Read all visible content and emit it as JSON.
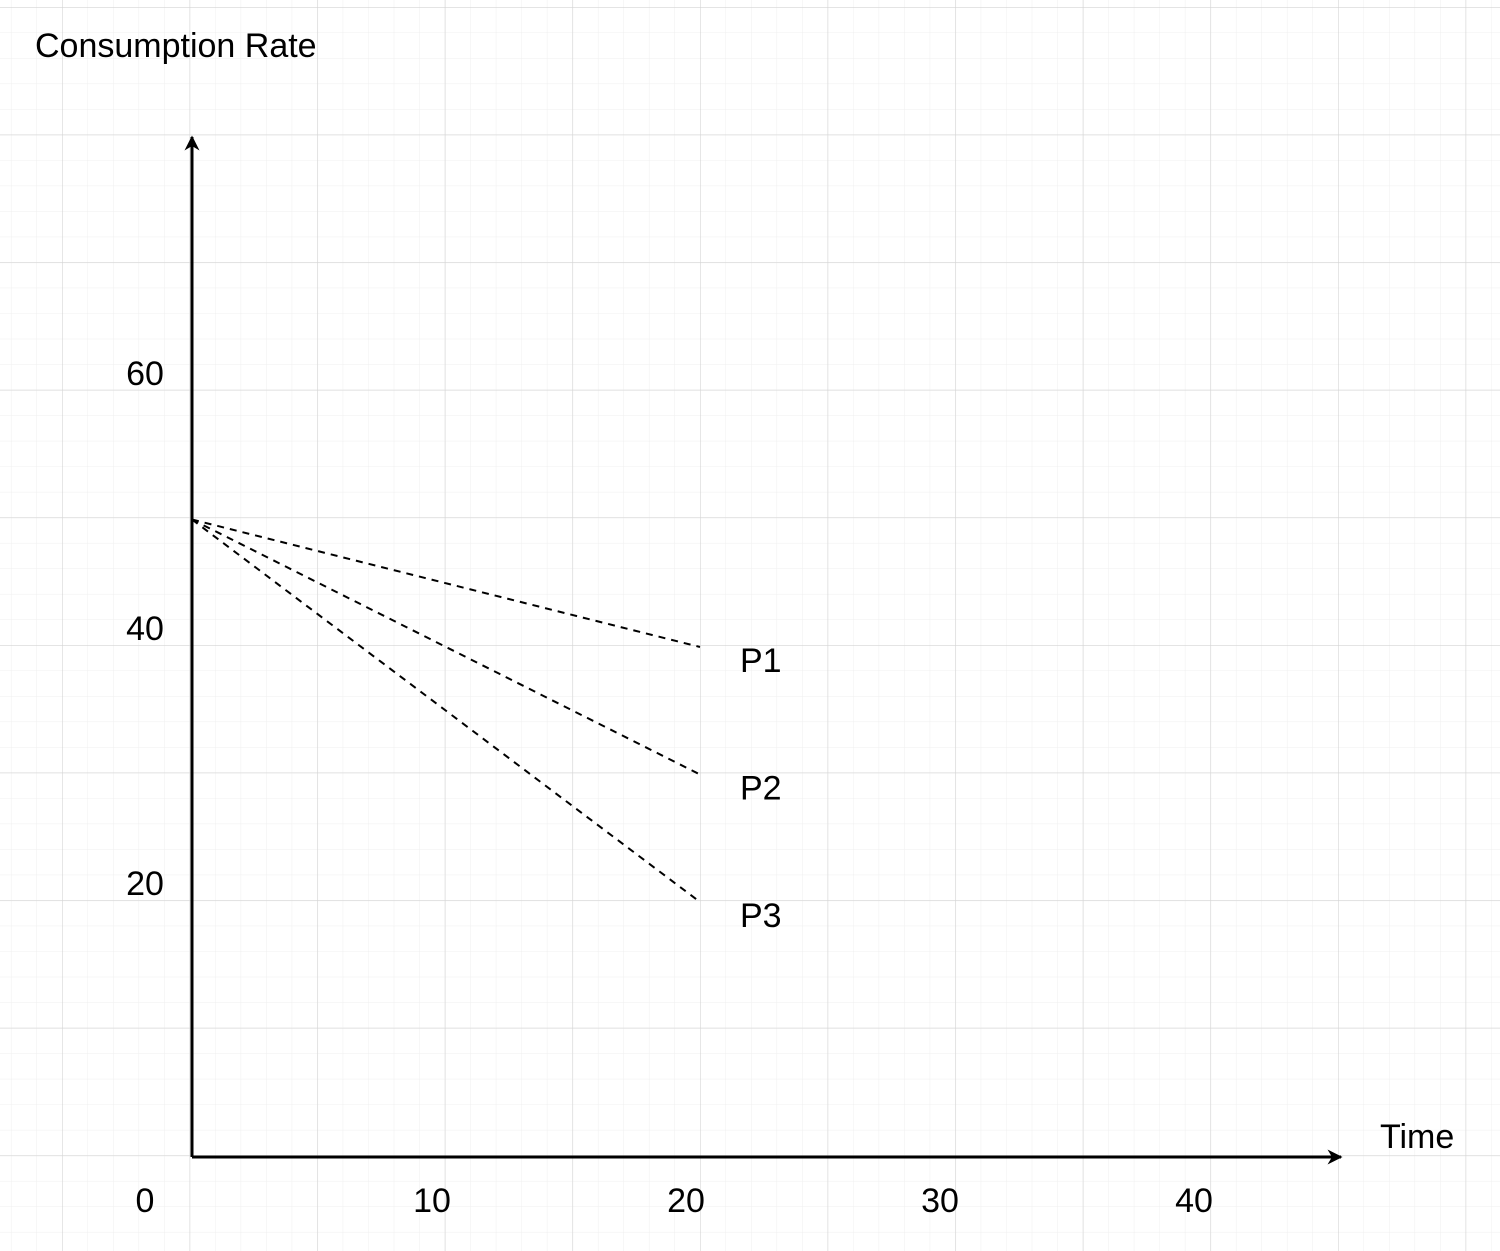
{
  "chart_data": {
    "type": "line",
    "y_label": "Consumption Rate",
    "x_label": "Time",
    "x": [
      0,
      20
    ],
    "series": [
      {
        "name": "P1",
        "color": "#000000",
        "values": [
          50,
          40
        ]
      },
      {
        "name": "P2",
        "color": "#000000",
        "values": [
          50,
          30
        ]
      },
      {
        "name": "P3",
        "color": "#000000",
        "values": [
          50,
          20
        ]
      }
    ],
    "line_style": "dashed",
    "xlim": [
      0,
      45
    ],
    "xticks": [
      0,
      10,
      20,
      30,
      40
    ],
    "ylim": [
      0,
      80
    ],
    "yticks": [
      20,
      40,
      60
    ]
  }
}
